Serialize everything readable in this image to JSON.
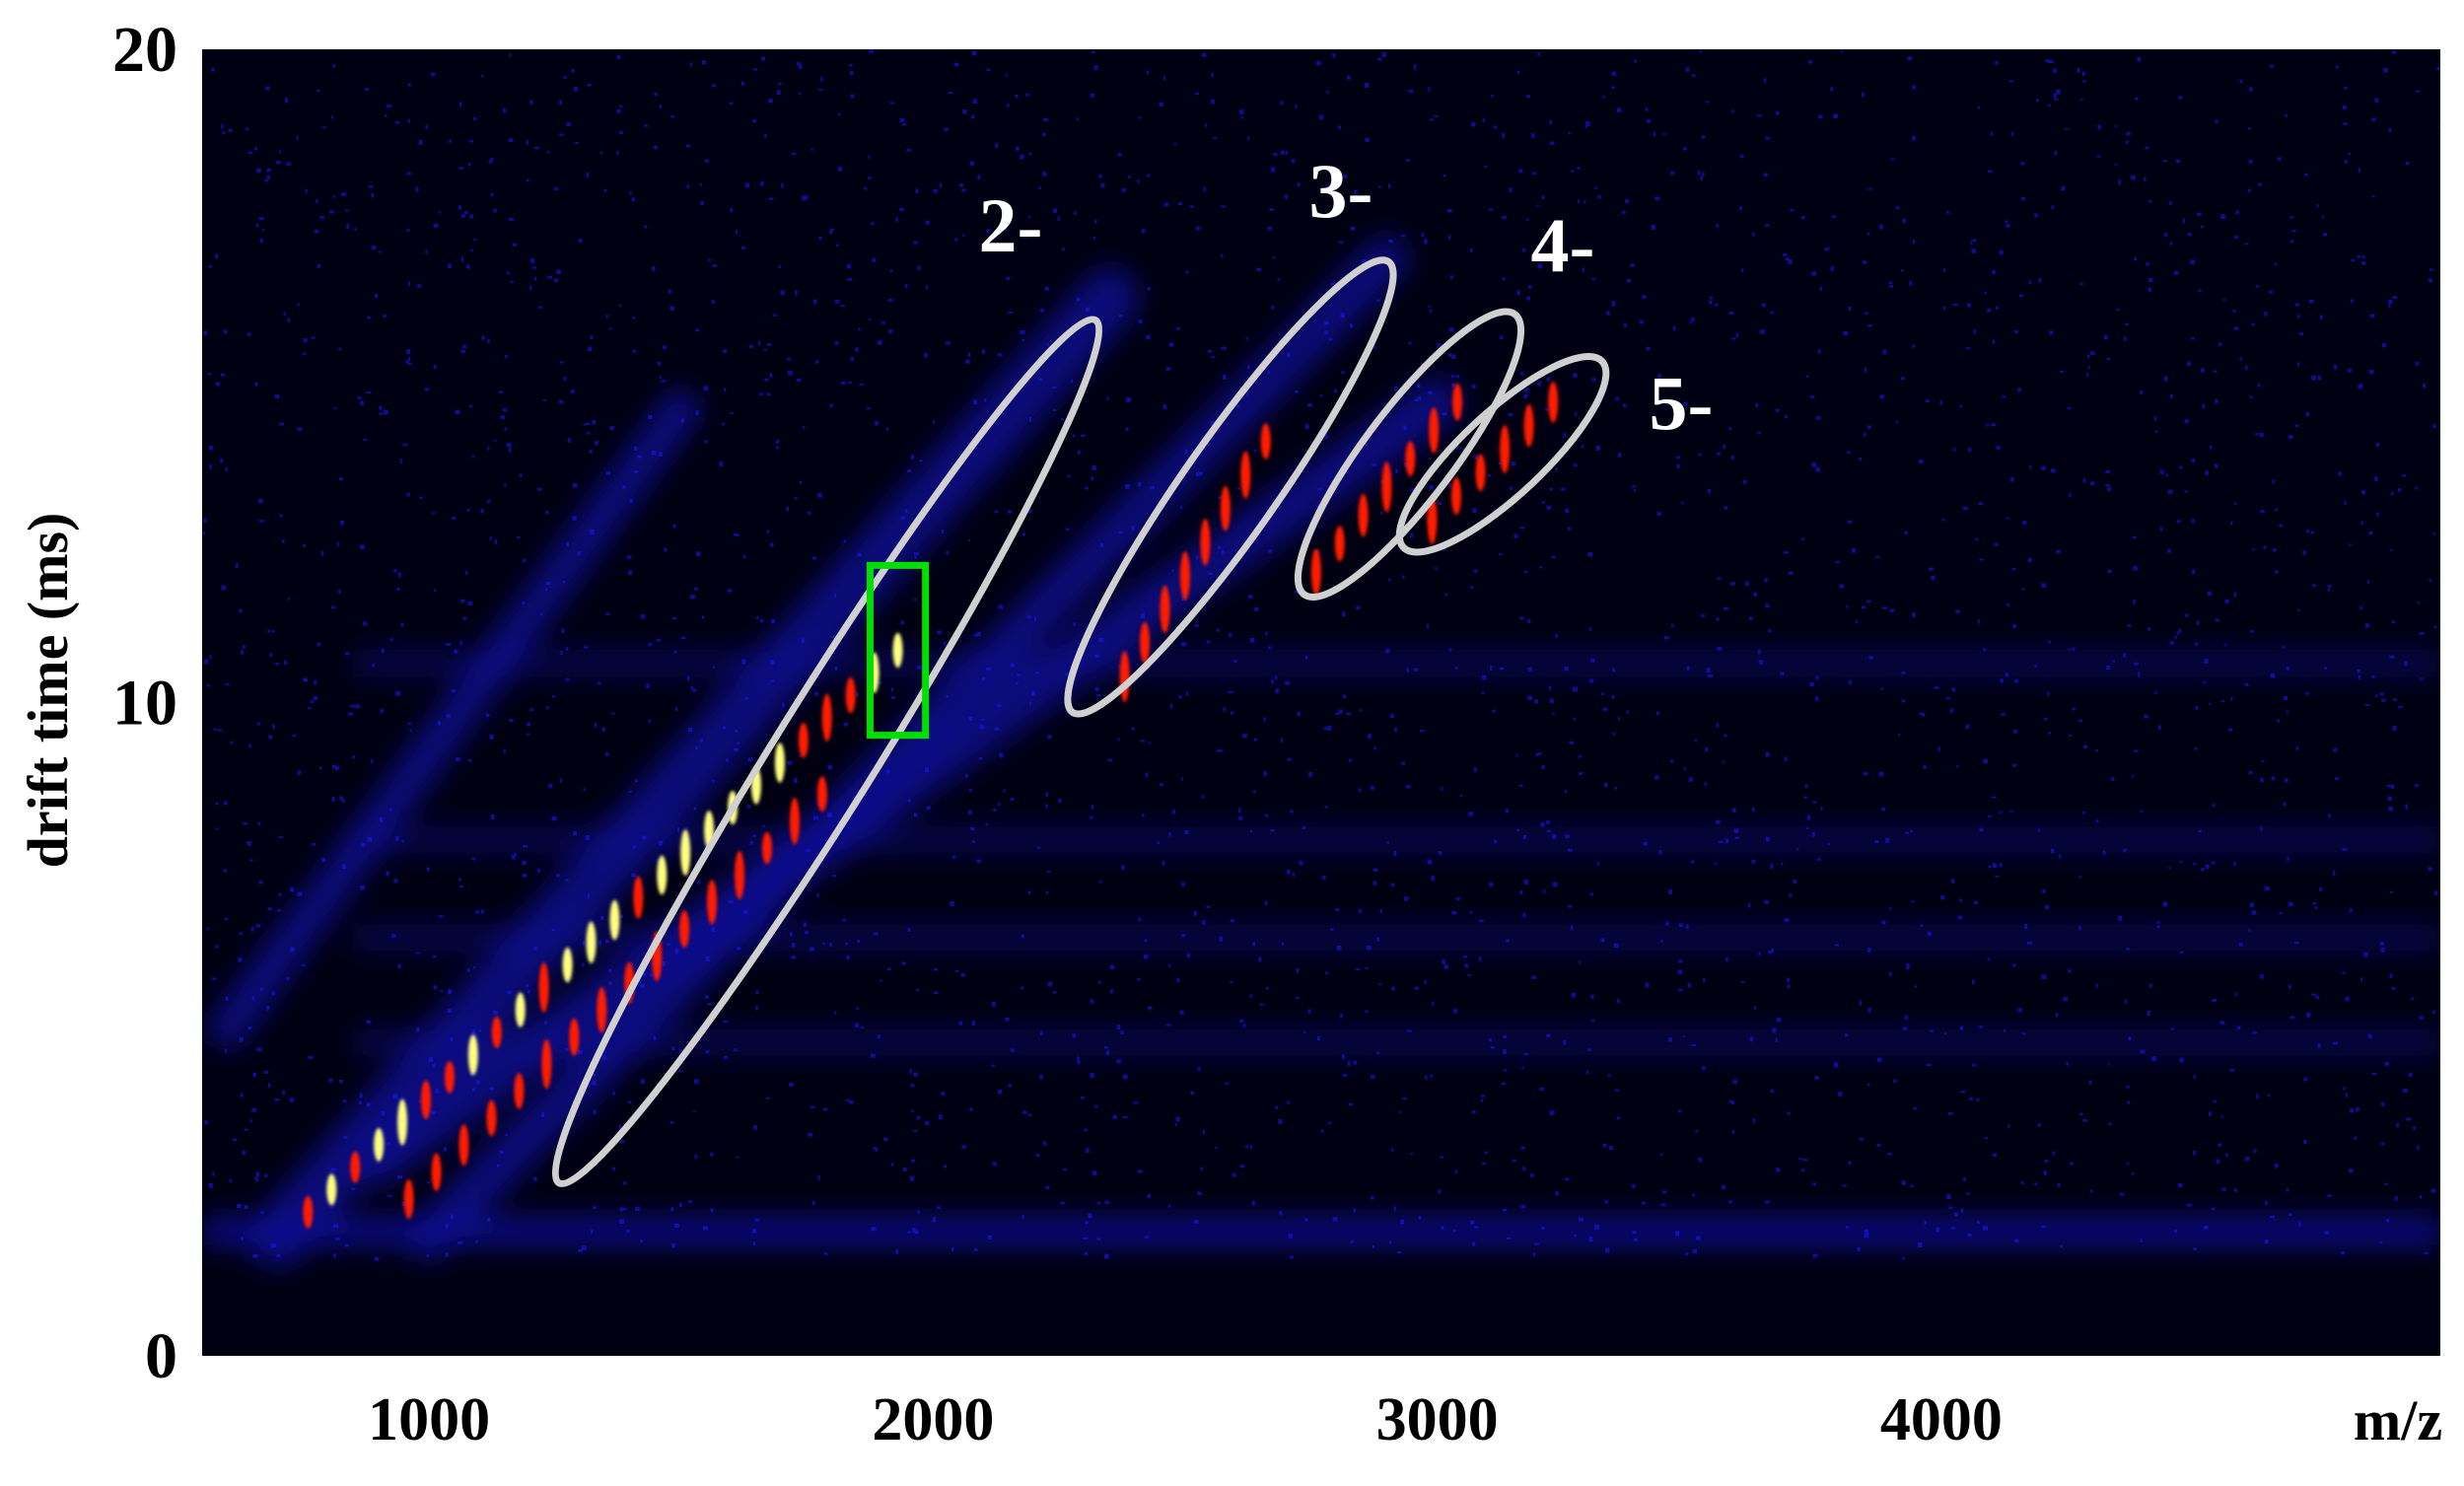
{
  "chart_data": {
    "type": "heatmap",
    "title": "",
    "xlabel": "m/z",
    "ylabel": "drift time (ms)",
    "xlim": [
      550,
      4990
    ],
    "ylim": [
      0,
      20
    ],
    "x_ticks": [
      1000,
      2000,
      3000,
      4000
    ],
    "y_ticks": [
      0,
      10,
      20
    ],
    "x_tick_labels": [
      "1000",
      "2000",
      "3000",
      "4000"
    ],
    "y_tick_labels": [
      "0",
      "10",
      "20"
    ],
    "colormap": [
      "#000010",
      "#1a1aff",
      "#ff1a00",
      "#ffff80"
    ],
    "background_color": "#000012",
    "grid": false,
    "legend": "none",
    "charge_state_regions": [
      {
        "label": "2-",
        "center": [
          1790,
          9.3
        ],
        "x_extent": [
          1270,
          2310
        ],
        "y_extent": [
          2.8,
          15.7
        ],
        "color": "#d0d0d0"
      },
      {
        "label": "3-",
        "center": [
          2590,
          13.3
        ],
        "x_extent": [
          2290,
          2890
        ],
        "y_extent": [
          10.0,
          16.6
        ],
        "color": "#d0d0d0"
      },
      {
        "label": "4-",
        "center": [
          2945,
          13.9
        ],
        "x_extent": [
          2750,
          3140
        ],
        "y_extent": [
          11.8,
          15.8
        ],
        "color": "#d0d0d0"
      },
      {
        "label": "5-",
        "center": [
          3125,
          13.9
        ],
        "x_extent": [
          2950,
          3310
        ],
        "y_extent": [
          12.5,
          15.1
        ],
        "color": "#d0d0d0"
      }
    ],
    "highlight_box": {
      "x": [
        1875,
        1985
      ],
      "y": [
        9.5,
        12.1
      ],
      "color": "#00e000"
    },
    "horizontal_bands_drift_time": [
      1.9,
      4.8,
      6.4,
      7.9,
      10.6
    ]
  }
}
